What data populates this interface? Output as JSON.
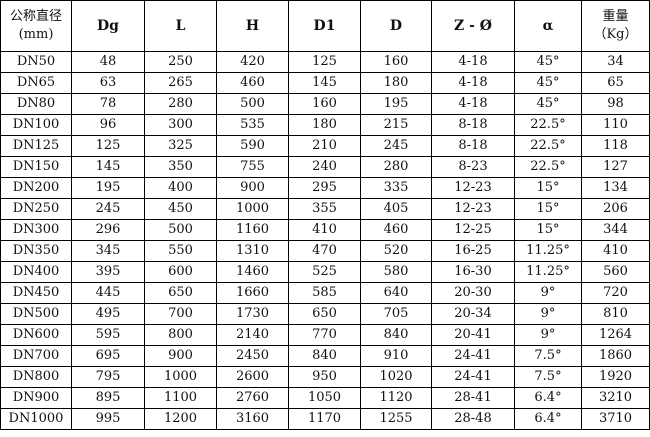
{
  "table": {
    "headers": [
      {
        "line1": "公称直径",
        "line2": "(mm)"
      },
      {
        "line1": "Dg"
      },
      {
        "line1": "L"
      },
      {
        "line1": "H"
      },
      {
        "line1": "D1"
      },
      {
        "line1": "D"
      },
      {
        "line1": "Z - Ø"
      },
      {
        "line1": "α"
      },
      {
        "line1": "重量",
        "line2": "（Kg）"
      }
    ],
    "rows": [
      [
        "DN50",
        "48",
        "250",
        "420",
        "125",
        "160",
        "4-18",
        "45°",
        "34"
      ],
      [
        "DN65",
        "63",
        "265",
        "460",
        "145",
        "180",
        "4-18",
        "45°",
        "65"
      ],
      [
        "DN80",
        "78",
        "280",
        "500",
        "160",
        "195",
        "4-18",
        "45°",
        "98"
      ],
      [
        "DN100",
        "96",
        "300",
        "535",
        "180",
        "215",
        "8-18",
        "22.5°",
        "110"
      ],
      [
        "DN125",
        "125",
        "325",
        "590",
        "210",
        "245",
        "8-18",
        "22.5°",
        "118"
      ],
      [
        "DN150",
        "145",
        "350",
        "755",
        "240",
        "280",
        "8-23",
        "22.5°",
        "127"
      ],
      [
        "DN200",
        "195",
        "400",
        "900",
        "295",
        "335",
        "12-23",
        "15°",
        "134"
      ],
      [
        "DN250",
        "245",
        "450",
        "1000",
        "355",
        "405",
        "12-23",
        "15°",
        "206"
      ],
      [
        "DN300",
        "296",
        "500",
        "1160",
        "410",
        "460",
        "12-25",
        "15°",
        "344"
      ],
      [
        "DN350",
        "345",
        "550",
        "1310",
        "470",
        "520",
        "16-25",
        "11.25°",
        "410"
      ],
      [
        "DN400",
        "395",
        "600",
        "1460",
        "525",
        "580",
        "16-30",
        "11.25°",
        "560"
      ],
      [
        "DN450",
        "445",
        "650",
        "1660",
        "585",
        "640",
        "20-30",
        "9°",
        "720"
      ],
      [
        "DN500",
        "495",
        "700",
        "1730",
        "650",
        "705",
        "20-34",
        "9°",
        "810"
      ],
      [
        "DN600",
        "595",
        "800",
        "2140",
        "770",
        "840",
        "20-41",
        "9°",
        "1264"
      ],
      [
        "DN700",
        "695",
        "900",
        "2450",
        "840",
        "910",
        "24-41",
        "7.5°",
        "1860"
      ],
      [
        "DN800",
        "795",
        "1000",
        "2600",
        "950",
        "1020",
        "24-41",
        "7.5°",
        "1920"
      ],
      [
        "DN900",
        "895",
        "1100",
        "2760",
        "1050",
        "1120",
        "28-41",
        "6.4°",
        "3210"
      ],
      [
        "DN1000",
        "995",
        "1200",
        "3160",
        "1170",
        "1255",
        "28-48",
        "6.4°",
        "3710"
      ]
    ]
  }
}
